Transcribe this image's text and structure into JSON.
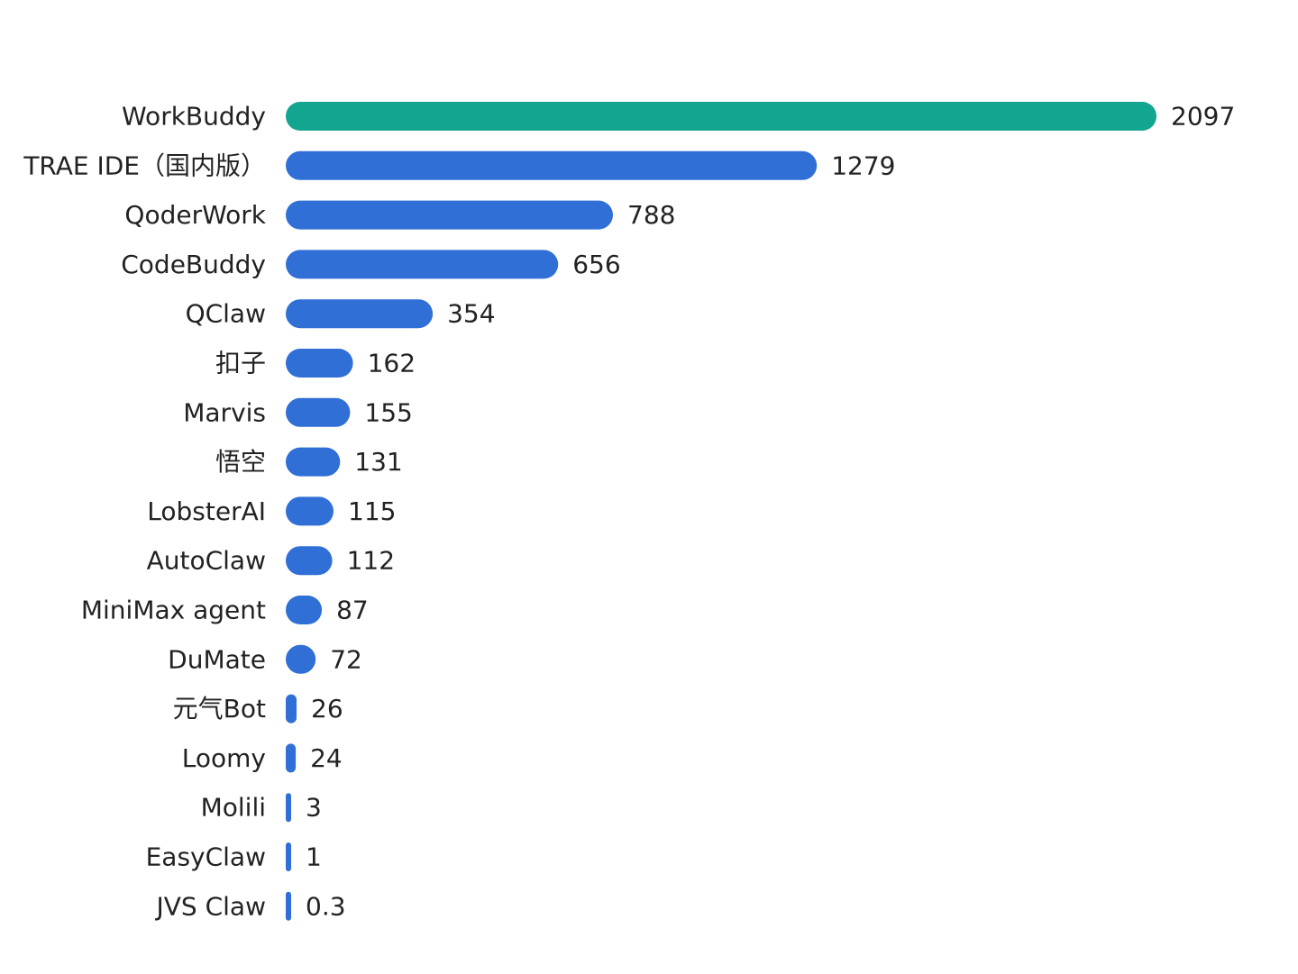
{
  "chart_data": {
    "type": "bar",
    "orientation": "horizontal",
    "title": "",
    "xlabel": "",
    "ylabel": "",
    "categories": [
      "WorkBuddy",
      "TRAE IDE（国内版）",
      "QoderWork",
      "CodeBuddy",
      "QClaw",
      "扣子",
      "Marvis",
      "悟空",
      "LobsterAI",
      "AutoClaw",
      "MiniMax agent",
      "DuMate",
      "元气Bot",
      "Loomy",
      "Molili",
      "EasyClaw",
      "JVS Claw"
    ],
    "values": [
      2097,
      1279,
      788,
      656,
      354,
      162,
      155,
      131,
      115,
      112,
      87,
      72,
      26,
      24,
      3,
      1,
      0.3
    ],
    "value_labels": [
      "2097",
      "1279",
      "788",
      "656",
      "354",
      "162",
      "155",
      "131",
      "115",
      "112",
      "87",
      "72",
      "26",
      "24",
      "3",
      "1",
      "0.3"
    ],
    "xlim": [
      0,
      2097
    ],
    "grid": false,
    "legend": "none",
    "colors": {
      "highlight": "#12A58F",
      "default": "#2F6FD6",
      "label_text": "#222222"
    },
    "highlight_index": 0
  }
}
